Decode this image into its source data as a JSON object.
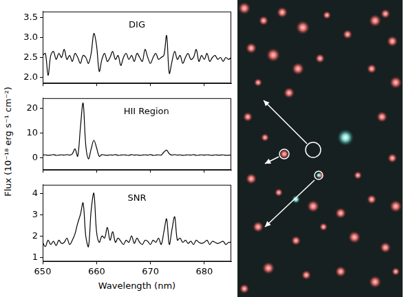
{
  "chart_data": [
    {
      "type": "line",
      "title": "DIG",
      "color": "#000000",
      "grid": false,
      "tick_labels": "y",
      "xlim": [
        650,
        685
      ],
      "xticks": [
        650,
        660,
        670,
        680
      ],
      "ylim": [
        1.85,
        3.65
      ],
      "yticks": [
        {
          "value": 2,
          "label": "2.0"
        },
        2.5,
        {
          "value": 3,
          "label": "3.0"
        },
        3.5
      ],
      "x": [
        650,
        650.5,
        651,
        651.5,
        652,
        652.5,
        653,
        653.5,
        654,
        654.5,
        655,
        655.5,
        656,
        656.5,
        657,
        657.5,
        658,
        658.5,
        659,
        659.5,
        660,
        660.5,
        661,
        661.5,
        662,
        662.5,
        663,
        663.5,
        664,
        664.5,
        665,
        665.5,
        666,
        666.5,
        667,
        667.5,
        668,
        668.5,
        669,
        669.5,
        670,
        670.5,
        671,
        671.5,
        672,
        672.5,
        673,
        673.5,
        674,
        674.5,
        675,
        675.5,
        676,
        676.5,
        677,
        677.5,
        678,
        678.5,
        679,
        679.5,
        680,
        680.5,
        681,
        681.5,
        682,
        682.5,
        683,
        683.5,
        684,
        684.5,
        685
      ],
      "values": [
        2.55,
        2.6,
        2.05,
        2.55,
        2.65,
        2.45,
        2.6,
        2.5,
        2.7,
        2.45,
        2.55,
        2.4,
        2.6,
        2.5,
        2.35,
        2.55,
        2.5,
        2.35,
        2.6,
        3.1,
        2.8,
        2.15,
        2.45,
        2.6,
        2.4,
        2.5,
        2.65,
        2.45,
        2.55,
        2.3,
        2.5,
        2.6,
        2.45,
        2.55,
        2.4,
        2.6,
        2.5,
        2.4,
        2.7,
        2.5,
        2.35,
        2.5,
        2.6,
        2.45,
        2.5,
        2.55,
        3.05,
        2.1,
        2.4,
        2.65,
        2.45,
        2.55,
        2.35,
        2.5,
        2.6,
        2.45,
        2.5,
        2.7,
        2.4,
        2.55,
        2.45,
        2.6,
        2.4,
        2.5,
        2.55,
        2.45,
        2.5,
        2.4,
        2.5,
        2.45,
        2.5
      ]
    },
    {
      "type": "line",
      "title": "HII Region",
      "color": "#000000",
      "grid": false,
      "tick_labels": "y",
      "y_label": "Flux (10⁻¹⁸ erg s⁻¹ cm⁻²)",
      "xlim": [
        650,
        685
      ],
      "xticks": [
        650,
        660,
        670,
        680
      ],
      "ylim": [
        -5,
        24
      ],
      "yticks": [
        0,
        10,
        20
      ],
      "x": [
        650,
        650.5,
        651,
        651.5,
        652,
        652.5,
        653,
        653.5,
        654,
        654.5,
        655,
        655.5,
        656,
        656.5,
        657,
        657.5,
        658,
        658.5,
        659,
        659.5,
        660,
        660.5,
        661,
        661.5,
        662,
        662.5,
        663,
        663.5,
        664,
        664.5,
        665,
        665.5,
        666,
        666.5,
        667,
        667.5,
        668,
        668.5,
        669,
        669.5,
        670,
        670.5,
        671,
        671.5,
        672,
        672.5,
        673,
        673.5,
        674,
        674.5,
        675,
        675.5,
        676,
        676.5,
        677,
        677.5,
        678,
        678.5,
        679,
        679.5,
        680,
        680.5,
        681,
        681.5,
        682,
        682.5,
        683,
        683.5,
        684,
        684.5,
        685
      ],
      "values": [
        1.0,
        1.1,
        0.9,
        1.0,
        1.2,
        0.9,
        1.0,
        1.1,
        1.0,
        1.2,
        1.0,
        1.5,
        3.5,
        0.5,
        12,
        22,
        5,
        -0.5,
        3.5,
        7,
        4,
        0.5,
        1.2,
        1.0,
        0.9,
        1.1,
        1.0,
        1.2,
        0.9,
        1.0,
        1.1,
        1.0,
        0.9,
        1.2,
        1.0,
        1.1,
        0.9,
        1.0,
        1.1,
        1.0,
        1.2,
        0.9,
        1.0,
        1.1,
        1.0,
        2.2,
        3.0,
        1.5,
        1.0,
        1.2,
        1.0,
        1.1,
        0.9,
        1.0,
        1.1,
        1.0,
        1.2,
        0.9,
        1.0,
        1.1,
        1.0,
        1.1,
        1.0,
        0.9,
        1.1,
        1.0,
        1.0,
        1.1,
        0.9,
        1.0,
        1.0
      ]
    },
    {
      "type": "line",
      "title": "SNR",
      "color": "#000000",
      "grid": false,
      "x_label": "Wavelength (nm)",
      "xlim": [
        650,
        685
      ],
      "xticks": [
        650,
        660,
        670,
        680
      ],
      "ylim": [
        0.8,
        4.4
      ],
      "yticks": [
        1,
        2,
        3,
        4
      ],
      "x": [
        650,
        650.5,
        651,
        651.5,
        652,
        652.5,
        653,
        653.5,
        654,
        654.5,
        655,
        655.5,
        656,
        656.5,
        657,
        657.5,
        658,
        658.5,
        659,
        659.5,
        660,
        660.5,
        661,
        661.5,
        662,
        662.5,
        663,
        663.5,
        664,
        664.5,
        665,
        665.5,
        666,
        666.5,
        667,
        667.5,
        668,
        668.5,
        669,
        669.5,
        670,
        670.5,
        671,
        671.5,
        672,
        672.5,
        673,
        673.5,
        674,
        674.5,
        675,
        675.5,
        676,
        676.5,
        677,
        677.5,
        678,
        678.5,
        679,
        679.5,
        680,
        680.5,
        681,
        681.5,
        682,
        682.5,
        683,
        683.5,
        684,
        684.5,
        685
      ],
      "values": [
        1.7,
        1.5,
        1.8,
        1.6,
        1.75,
        1.55,
        1.8,
        1.65,
        1.7,
        1.9,
        1.6,
        1.8,
        2.1,
        2.6,
        3.0,
        3.55,
        2.0,
        1.5,
        3.2,
        4.0,
        2.2,
        1.7,
        2.0,
        1.9,
        2.4,
        1.8,
        2.2,
        1.7,
        1.9,
        1.75,
        1.6,
        1.8,
        1.7,
        2.0,
        1.65,
        1.9,
        1.7,
        1.6,
        1.8,
        1.75,
        1.6,
        1.8,
        1.7,
        1.9,
        1.6,
        2.2,
        2.8,
        1.6,
        2.3,
        2.9,
        1.8,
        1.9,
        1.7,
        1.8,
        1.65,
        1.75,
        1.6,
        1.8,
        1.7,
        1.65,
        1.7,
        1.8,
        1.6,
        1.75,
        1.7,
        1.65,
        1.7,
        1.75,
        1.6,
        1.7,
        1.7
      ]
    }
  ]
}
